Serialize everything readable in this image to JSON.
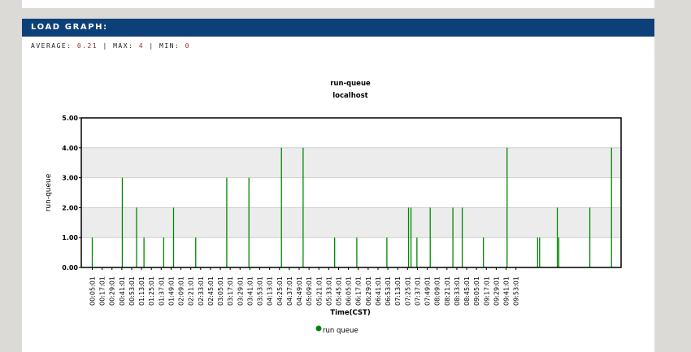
{
  "panel": {
    "title": "LOAD GRAPH:",
    "stats": {
      "average_label": "AVERAGE:",
      "average_value": "0.21",
      "max_label": "MAX:",
      "max_value": "4",
      "min_label": "MIN:",
      "min_value": "0",
      "separator": "|"
    }
  },
  "colors": {
    "header_bg": "#0d4078",
    "series": "#008800",
    "band": "#ececec",
    "page_bg": "#dcdad7"
  },
  "chart_data": {
    "type": "bar",
    "title": "run-queue",
    "subtitle": "localhost",
    "ylabel": "run-queue",
    "xlabel": "Time(CST)",
    "ylim": [
      0,
      5
    ],
    "y_ticks": [
      "0.00",
      "1.00",
      "2.00",
      "3.00",
      "4.00",
      "5.00"
    ],
    "x_ticks": [
      "00:05:01",
      "00:17:01",
      "00:29:01",
      "00:41:01",
      "00:53:01",
      "01:13:01",
      "01:25:01",
      "01:37:01",
      "01:49:01",
      "02:09:01",
      "02:21:01",
      "02:33:01",
      "02:45:01",
      "03:05:01",
      "03:17:01",
      "03:29:01",
      "03:41:01",
      "03:53:01",
      "04:13:01",
      "04:25:01",
      "04:37:01",
      "04:49:01",
      "05:09:01",
      "05:21:01",
      "05:33:01",
      "05:45:01",
      "06:05:01",
      "06:17:01",
      "06:29:01",
      "06:41:01",
      "06:53:01",
      "07:13:01",
      "07:25:01",
      "07:37:01",
      "07:49:01",
      "08:09:01",
      "08:21:01",
      "08:33:01",
      "08:45:01",
      "09:05:01",
      "09:17:01",
      "09:29:01",
      "09:41:01",
      "09:53:01"
    ],
    "x_range": [
      0,
      43.6
    ],
    "spikes": [
      {
        "x": 0.0,
        "y": 1
      },
      {
        "x": 3.05,
        "y": 3
      },
      {
        "x": 4.5,
        "y": 2
      },
      {
        "x": 5.25,
        "y": 1
      },
      {
        "x": 7.25,
        "y": 1
      },
      {
        "x": 8.25,
        "y": 2
      },
      {
        "x": 10.5,
        "y": 1
      },
      {
        "x": 13.65,
        "y": 3
      },
      {
        "x": 15.9,
        "y": 3
      },
      {
        "x": 19.2,
        "y": 4
      },
      {
        "x": 21.4,
        "y": 4
      },
      {
        "x": 24.6,
        "y": 1
      },
      {
        "x": 26.85,
        "y": 1
      },
      {
        "x": 29.9,
        "y": 1
      },
      {
        "x": 32.1,
        "y": 2
      },
      {
        "x": 32.35,
        "y": 2
      },
      {
        "x": 32.95,
        "y": 1
      },
      {
        "x": 34.3,
        "y": 2
      },
      {
        "x": 36.6,
        "y": 2
      },
      {
        "x": 37.55,
        "y": 2
      },
      {
        "x": 39.7,
        "y": 1
      },
      {
        "x": 42.1,
        "y": 4
      },
      {
        "x": 45.2,
        "y": 1
      },
      {
        "x": 45.4,
        "y": 1
      },
      {
        "x": 47.2,
        "y": 2
      },
      {
        "x": 47.35,
        "y": 1
      },
      {
        "x": 50.5,
        "y": 2
      },
      {
        "x": 52.7,
        "y": 4
      }
    ],
    "legend": [
      {
        "label": "run queue",
        "color": "#008800"
      }
    ],
    "legend_position": "bottom-center",
    "grid": true
  }
}
